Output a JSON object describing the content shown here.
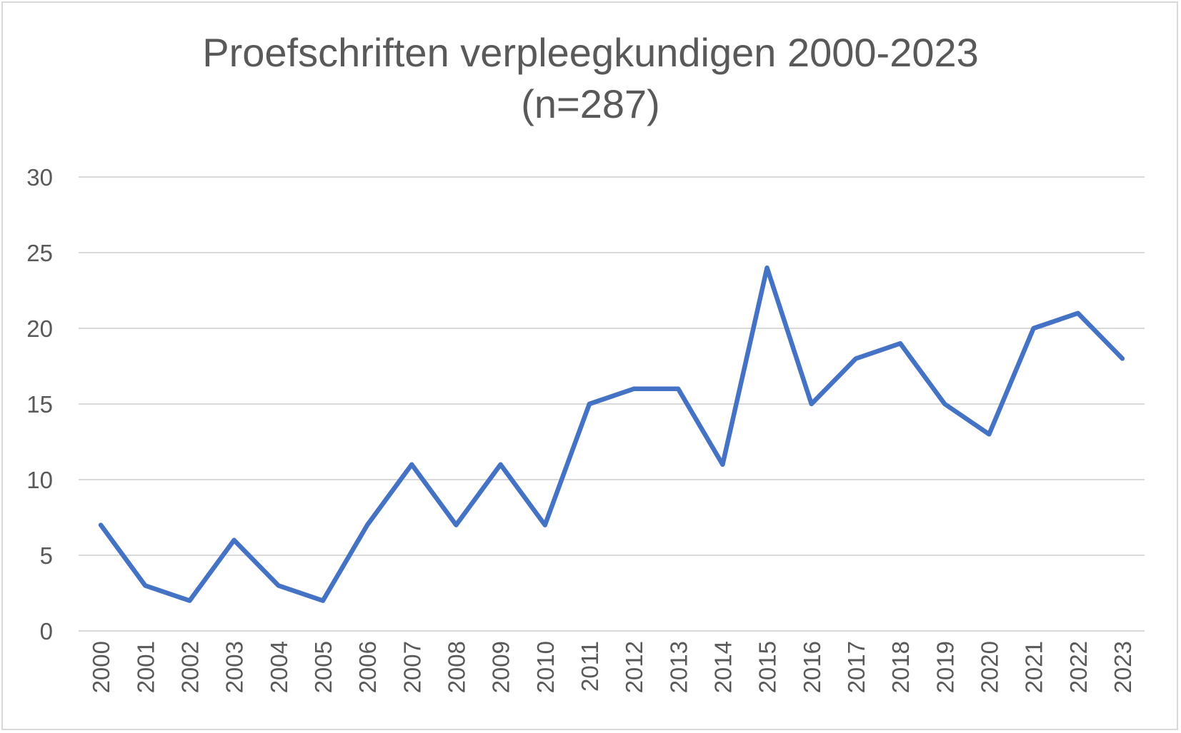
{
  "chart_data": {
    "type": "line",
    "title": "Proefschriften verpleegkundigen 2000-2023",
    "subtitle": "(n=287)",
    "xlabel": "",
    "ylabel": "",
    "ylim": [
      0,
      30
    ],
    "yticks": [
      "0",
      "5",
      "10",
      "15",
      "20",
      "25",
      "30"
    ],
    "grid": true,
    "legend": "none",
    "categories": [
      "2000",
      "2001",
      "2002",
      "2003",
      "2004",
      "2005",
      "2006",
      "2007",
      "2008",
      "2009",
      "2010",
      "2011",
      "2012",
      "2013",
      "2014",
      "2015",
      "2016",
      "2017",
      "2018",
      "2019",
      "2020",
      "2021",
      "2022",
      "2023"
    ],
    "series": [
      {
        "color": "#4472c4",
        "values": [
          7,
          3,
          2,
          6,
          3,
          2,
          7,
          11,
          7,
          11,
          7,
          15,
          16,
          16,
          11,
          24,
          15,
          18,
          19,
          15,
          13,
          20,
          21,
          18
        ]
      }
    ]
  }
}
